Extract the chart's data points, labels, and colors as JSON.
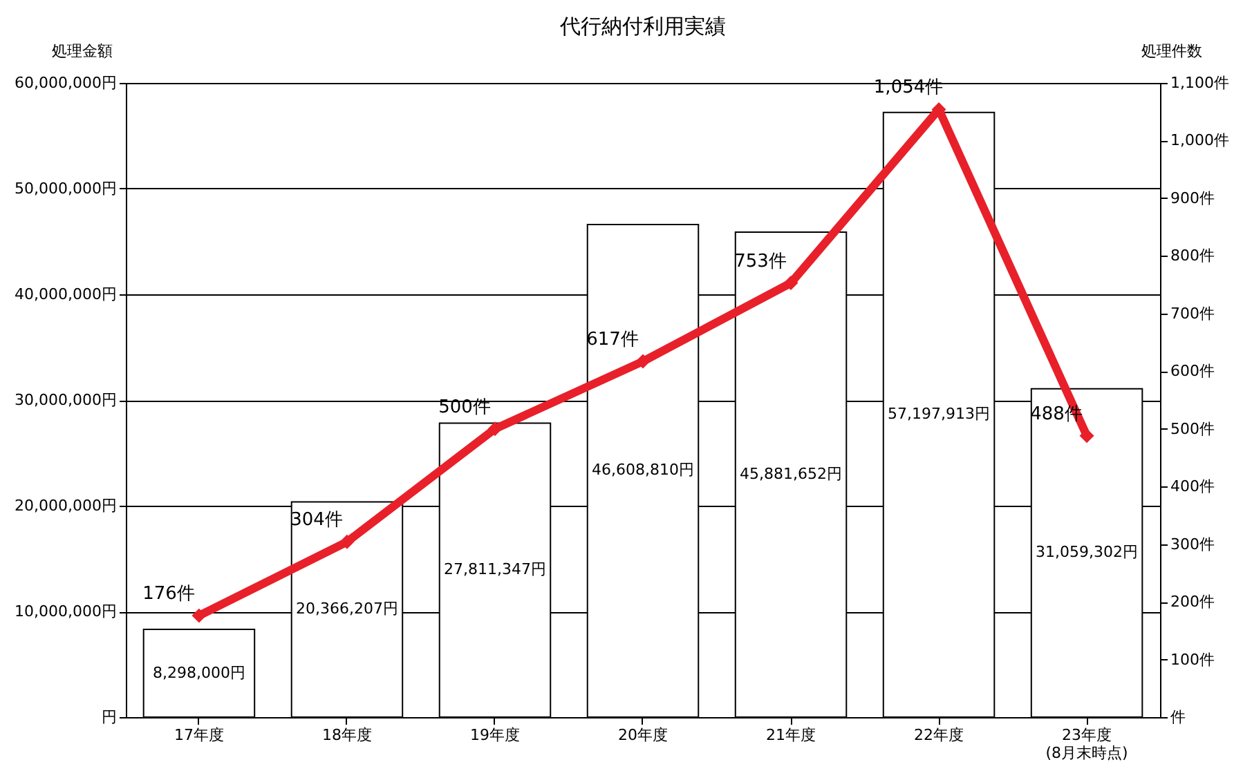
{
  "chart_data": {
    "type": "bar",
    "title": "代行納付利用実績",
    "ylabel": "処理金額",
    "y2label": "処理件数",
    "categories": [
      "17年度",
      "18年度",
      "19年度",
      "20年度",
      "21年度",
      "22年度",
      "23年度\n(8月末時点)"
    ],
    "series": [
      {
        "color": "#ffffff",
        "values": [
          8298000,
          20366207,
          27811347,
          46608810,
          45881652,
          57197913,
          31059302
        ],
        "value_labels": [
          "8,298,000円",
          "20,366,207円",
          "27,811,347円",
          "46,608,810円",
          "45,881,652円",
          "57,197,913円",
          "31,059,302円"
        ]
      },
      {
        "type": "line",
        "axis": "y2",
        "color": "#e8202a",
        "marker": "diamond",
        "values": [
          176,
          304,
          500,
          617,
          753,
          1054,
          488
        ],
        "value_labels": [
          "176件",
          "304件",
          "500件",
          "617件",
          "753件",
          "1,054件",
          "488件"
        ]
      }
    ],
    "ylim": [
      0,
      60000000
    ],
    "yticks": [
      {
        "value": 0,
        "label": "円"
      },
      {
        "value": 10000000,
        "label": "10,000,000円"
      },
      {
        "value": 20000000,
        "label": "20,000,000円"
      },
      {
        "value": 30000000,
        "label": "30,000,000円"
      },
      {
        "value": 40000000,
        "label": "40,000,000円"
      },
      {
        "value": 50000000,
        "label": "50,000,000円"
      },
      {
        "value": 60000000,
        "label": "60,000,000円"
      }
    ],
    "y2lim": [
      0,
      1100
    ],
    "y2ticks": [
      {
        "value": 0,
        "label": "件"
      },
      {
        "value": 100,
        "label": "100件"
      },
      {
        "value": 200,
        "label": "200件"
      },
      {
        "value": 300,
        "label": "300件"
      },
      {
        "value": 400,
        "label": "400件"
      },
      {
        "value": 500,
        "label": "500件"
      },
      {
        "value": 600,
        "label": "600件"
      },
      {
        "value": 700,
        "label": "700件"
      },
      {
        "value": 800,
        "label": "800件"
      },
      {
        "value": 900,
        "label": "900件"
      },
      {
        "value": 1000,
        "label": "1,000件"
      },
      {
        "value": 1100,
        "label": "1,100件"
      }
    ],
    "grid": "y"
  }
}
